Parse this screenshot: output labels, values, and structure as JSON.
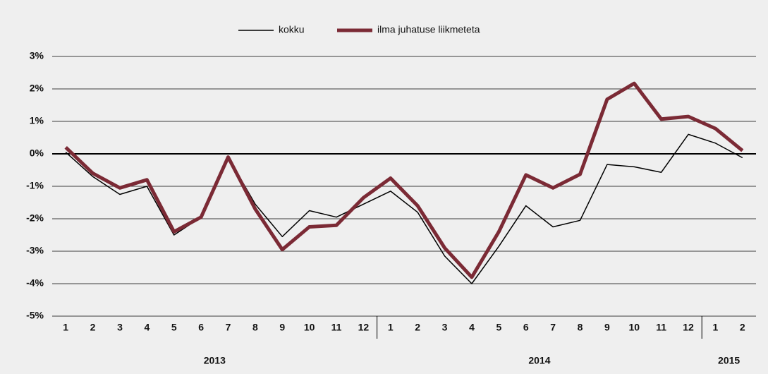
{
  "chart_data": {
    "type": "line",
    "category_groups": [
      {
        "label": "2013",
        "categories": [
          "1",
          "2",
          "3",
          "4",
          "5",
          "6",
          "7",
          "8",
          "9",
          "10",
          "11",
          "12"
        ]
      },
      {
        "label": "2014",
        "categories": [
          "1",
          "2",
          "3",
          "4",
          "5",
          "6",
          "7",
          "8",
          "9",
          "10",
          "11",
          "12"
        ]
      },
      {
        "label": "2015",
        "categories": [
          "1",
          "2"
        ]
      }
    ],
    "series": [
      {
        "name": "kokku",
        "color": "#000000",
        "values": [
          0.05,
          -0.7,
          -1.25,
          -1.0,
          -2.5,
          -1.95,
          -0.1,
          -1.55,
          -2.55,
          -1.75,
          -1.95,
          -1.55,
          -1.15,
          -1.8,
          -3.15,
          -4.0,
          -2.85,
          -1.6,
          -2.25,
          -2.05,
          -0.33,
          -0.4,
          -0.57,
          0.6,
          0.33,
          -0.12
        ]
      },
      {
        "name": "ilma juhatuse liikmeteta",
        "color": "#7b2a35",
        "values": [
          0.2,
          -0.6,
          -1.05,
          -0.8,
          -2.4,
          -1.95,
          -0.1,
          -1.7,
          -2.95,
          -2.25,
          -2.2,
          -1.35,
          -0.75,
          -1.6,
          -2.9,
          -3.8,
          -2.4,
          -0.65,
          -1.05,
          -0.63,
          1.68,
          2.17,
          1.07,
          1.15,
          0.78,
          0.1
        ]
      }
    ],
    "ylim": [
      -5,
      3
    ],
    "yticks": [
      {
        "value": -5,
        "label": "-5%"
      },
      {
        "value": -4,
        "label": "-4%"
      },
      {
        "value": -3,
        "label": "-3%"
      },
      {
        "value": -2,
        "label": "-2%"
      },
      {
        "value": -1,
        "label": "-1%"
      },
      {
        "value": 0,
        "label": "0%"
      },
      {
        "value": 1,
        "label": "1%"
      },
      {
        "value": 2,
        "label": "2%"
      },
      {
        "value": 3,
        "label": "3%"
      }
    ],
    "grid": true,
    "legend": "top"
  }
}
